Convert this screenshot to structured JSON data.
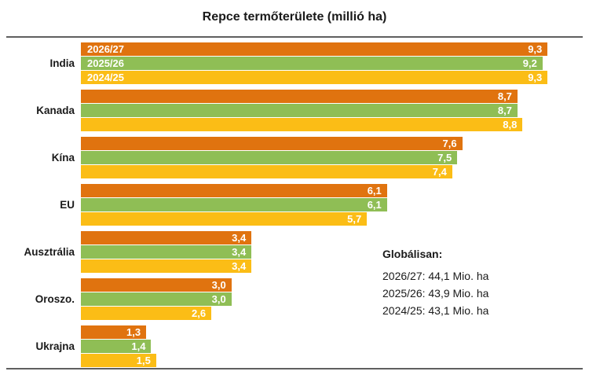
{
  "title": "Repce termőterülete (millió ha)",
  "chart_data": {
    "type": "bar",
    "orientation": "horizontal",
    "title": "Repce termőterülete (millió ha)",
    "xlabel": "",
    "ylabel": "",
    "xlim": [
      0,
      10
    ],
    "grid": false,
    "legend_position": "inside-first-group-bars",
    "decimal_separator": ",",
    "categories": [
      "India",
      "Kanada",
      "Kína",
      "EU",
      "Ausztrália",
      "Oroszo.",
      "Ukrajna"
    ],
    "series": [
      {
        "name": "2026/27",
        "color": "#E0730F",
        "values": [
          9.3,
          8.7,
          7.6,
          6.1,
          3.4,
          3.0,
          1.3
        ],
        "labels": [
          "9,3",
          "8,7",
          "7,6",
          "6,1",
          "3,4",
          "3,0",
          "1,3"
        ]
      },
      {
        "name": "2025/26",
        "color": "#8FBE55",
        "values": [
          9.2,
          8.7,
          7.5,
          6.1,
          3.4,
          3.0,
          1.4
        ],
        "labels": [
          "9,2",
          "8,7",
          "7,5",
          "6,1",
          "3,4",
          "3,0",
          "1,4"
        ]
      },
      {
        "name": "2024/25",
        "color": "#FBBD16",
        "values": [
          9.3,
          8.8,
          7.4,
          5.7,
          3.4,
          2.6,
          1.5
        ],
        "labels": [
          "9,3",
          "8,8",
          "7,4",
          "5,7",
          "3,4",
          "2,6",
          "1,5"
        ]
      }
    ],
    "annotation": {
      "heading": "Globálisan:",
      "lines": [
        "2026/27: 44,1 Mio. ha",
        "2025/26: 43,9 Mio. ha",
        "2024/25: 43,1 Mio. ha"
      ]
    }
  }
}
